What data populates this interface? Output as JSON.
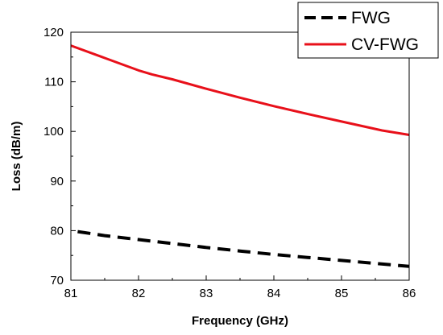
{
  "chart_data": {
    "type": "line",
    "xlabel": "Frequency (GHz)",
    "ylabel": "Loss (dB/m)",
    "xlim": [
      81,
      86
    ],
    "ylim": [
      70,
      120
    ],
    "xticks": [
      81,
      82,
      83,
      84,
      85,
      86
    ],
    "yticks": [
      70,
      80,
      90,
      100,
      110,
      120
    ],
    "grid": false,
    "legend_position": "top-right",
    "series": [
      {
        "name": "FWG",
        "color": "#000000",
        "line_style": "dashed",
        "x": [
          81.1,
          81.5,
          82.0,
          82.5,
          83.0,
          83.5,
          84.0,
          84.5,
          85.0,
          85.5,
          86.0
        ],
        "y": [
          79.8,
          79.0,
          78.2,
          77.4,
          76.6,
          75.9,
          75.2,
          74.6,
          74.0,
          73.4,
          72.8
        ]
      },
      {
        "name": "CV-FWG",
        "color": "#e8101a",
        "line_style": "solid",
        "x": [
          81.0,
          81.5,
          82.0,
          82.2,
          82.5,
          83.0,
          83.5,
          84.0,
          84.5,
          85.0,
          85.6,
          86.0
        ],
        "y": [
          117.3,
          114.8,
          112.3,
          111.5,
          110.5,
          108.6,
          106.8,
          105.1,
          103.5,
          102.0,
          100.2,
          99.3
        ]
      }
    ]
  }
}
